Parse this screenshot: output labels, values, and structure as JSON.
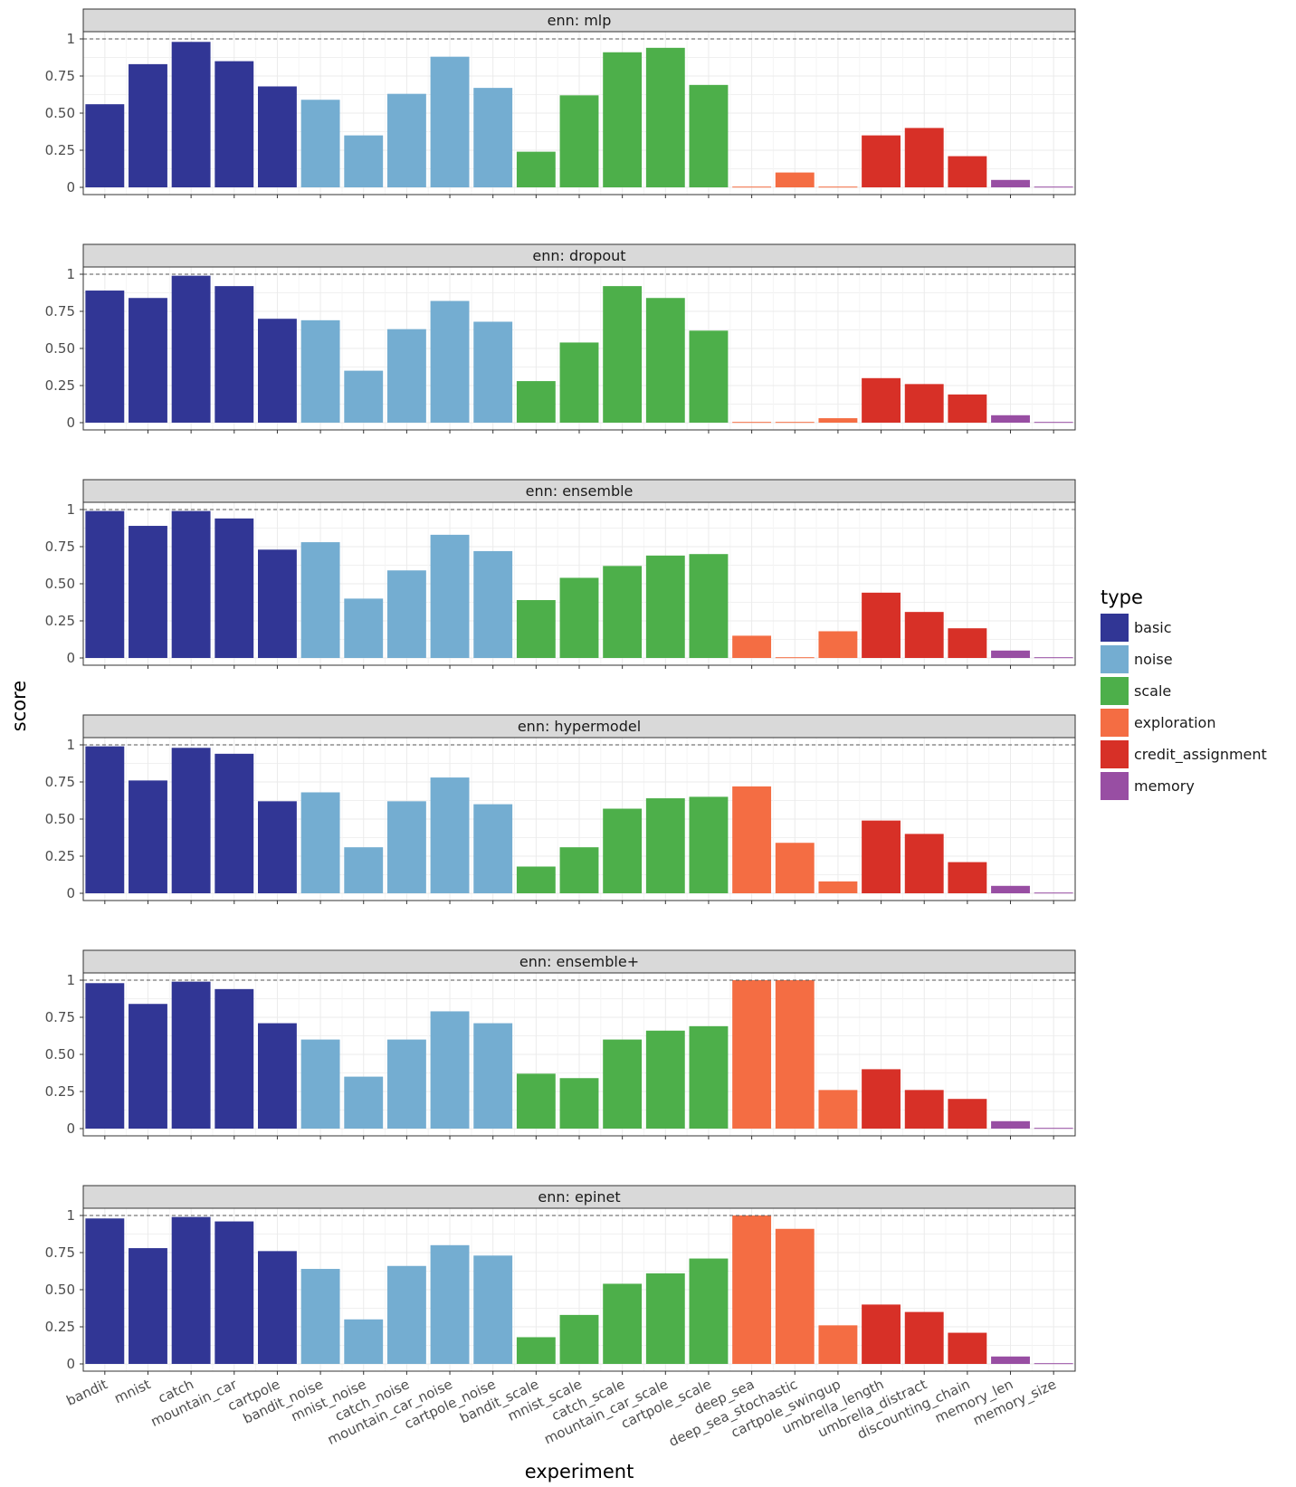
{
  "chart_data": {
    "type": "bar",
    "xlabel": "experiment",
    "ylabel": "score",
    "ylim": [
      0,
      1.05
    ],
    "y_ticks": [
      {
        "value": 0,
        "label": "0"
      },
      {
        "value": 0.25,
        "label": "0.25"
      },
      {
        "value": 0.5,
        "label": "0.50"
      },
      {
        "value": 0.75,
        "label": "0.75"
      },
      {
        "value": 1,
        "label": "1"
      }
    ],
    "reference_line": 1,
    "grid": true,
    "legend": {
      "title": "type",
      "placement": "right",
      "entries": [
        {
          "name": "basic",
          "color": "#313695"
        },
        {
          "name": "noise",
          "color": "#74add1"
        },
        {
          "name": "scale",
          "color": "#4daf4a"
        },
        {
          "name": "exploration",
          "color": "#f46d43"
        },
        {
          "name": "credit_assignment",
          "color": "#d73027"
        },
        {
          "name": "memory",
          "color": "#984ea3"
        }
      ]
    },
    "categories": [
      "bandit",
      "mnist",
      "catch",
      "mountain_car",
      "cartpole",
      "bandit_noise",
      "mnist_noise",
      "catch_noise",
      "mountain_car_noise",
      "cartpole_noise",
      "bandit_scale",
      "mnist_scale",
      "catch_scale",
      "mountain_car_scale",
      "cartpole_scale",
      "deep_sea",
      "deep_sea_stochastic",
      "cartpole_swingup",
      "umbrella_length",
      "umbrella_distract",
      "discounting_chain",
      "memory_len",
      "memory_size"
    ],
    "category_types": [
      "basic",
      "basic",
      "basic",
      "basic",
      "basic",
      "noise",
      "noise",
      "noise",
      "noise",
      "noise",
      "scale",
      "scale",
      "scale",
      "scale",
      "scale",
      "exploration",
      "exploration",
      "exploration",
      "credit_assignment",
      "credit_assignment",
      "credit_assignment",
      "memory",
      "memory"
    ],
    "panels": [
      {
        "title": "enn: mlp",
        "values": [
          0.56,
          0.83,
          0.98,
          0.85,
          0.68,
          0.59,
          0.35,
          0.63,
          0.88,
          0.67,
          0.24,
          0.62,
          0.91,
          0.94,
          0.69,
          0.005,
          0.1,
          0.005,
          0.35,
          0.4,
          0.21,
          0.05,
          0.005
        ]
      },
      {
        "title": "enn: dropout",
        "values": [
          0.89,
          0.84,
          0.99,
          0.92,
          0.7,
          0.69,
          0.35,
          0.63,
          0.82,
          0.68,
          0.28,
          0.54,
          0.92,
          0.84,
          0.62,
          0.005,
          0.005,
          0.03,
          0.3,
          0.26,
          0.19,
          0.05,
          0.005
        ]
      },
      {
        "title": "enn: ensemble",
        "values": [
          0.99,
          0.89,
          0.99,
          0.94,
          0.73,
          0.78,
          0.4,
          0.59,
          0.83,
          0.72,
          0.39,
          0.54,
          0.62,
          0.69,
          0.7,
          0.15,
          0.005,
          0.18,
          0.44,
          0.31,
          0.2,
          0.05,
          0.005
        ]
      },
      {
        "title": "enn: hypermodel",
        "values": [
          0.99,
          0.76,
          0.98,
          0.94,
          0.62,
          0.68,
          0.31,
          0.62,
          0.78,
          0.6,
          0.18,
          0.31,
          0.57,
          0.64,
          0.65,
          0.72,
          0.34,
          0.08,
          0.49,
          0.4,
          0.21,
          0.05,
          0.005
        ]
      },
      {
        "title": "enn: ensemble+",
        "values": [
          0.98,
          0.84,
          0.99,
          0.94,
          0.71,
          0.6,
          0.35,
          0.6,
          0.79,
          0.71,
          0.37,
          0.34,
          0.6,
          0.66,
          0.69,
          1.0,
          1.0,
          0.26,
          0.4,
          0.26,
          0.2,
          0.05,
          0.005
        ]
      },
      {
        "title": "enn: epinet",
        "values": [
          0.98,
          0.78,
          0.99,
          0.96,
          0.76,
          0.64,
          0.3,
          0.66,
          0.8,
          0.73,
          0.18,
          0.33,
          0.54,
          0.61,
          0.71,
          1.0,
          0.91,
          0.26,
          0.4,
          0.35,
          0.21,
          0.05,
          0.005
        ]
      }
    ]
  }
}
